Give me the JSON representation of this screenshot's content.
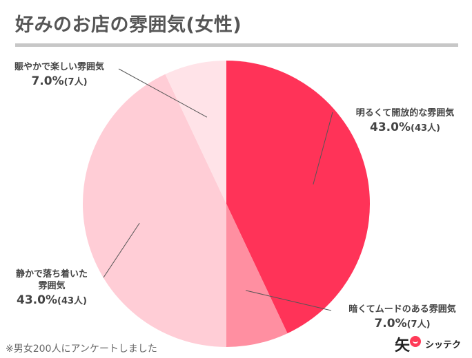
{
  "title": "好みのお店の雰囲気(女性)",
  "footnote": "※男女200人にアンケートしました",
  "brand": {
    "mark": "矢",
    "name": "シッテク",
    "icon": "smile-face-icon"
  },
  "chart_data": {
    "type": "pie",
    "title": "好みのお店の雰囲気(女性)",
    "start_angle_deg": 0,
    "direction": "clockwise",
    "slices": [
      {
        "label": "明るくて開放的な雰囲気",
        "percent": 43.0,
        "percent_text": "43.0%",
        "count_text": "(43人)",
        "color": "#ff3358"
      },
      {
        "label": "暗くてムードのある雰囲気",
        "percent": 7.0,
        "percent_text": "7.0%",
        "count_text": "(7人)",
        "color": "#ff8fa1"
      },
      {
        "label": "静かで落ち着いた雰囲気",
        "label_lines": [
          "静かで落ち着いた",
          "雰囲気"
        ],
        "percent": 43.0,
        "percent_text": "43.0%",
        "count_text": "(43人)",
        "color": "#ffcdd6"
      },
      {
        "label": "賑やかで楽しい雰囲気",
        "percent": 7.0,
        "percent_text": "7.0%",
        "count_text": "(7人)",
        "color": "#ffe3e8"
      }
    ]
  }
}
